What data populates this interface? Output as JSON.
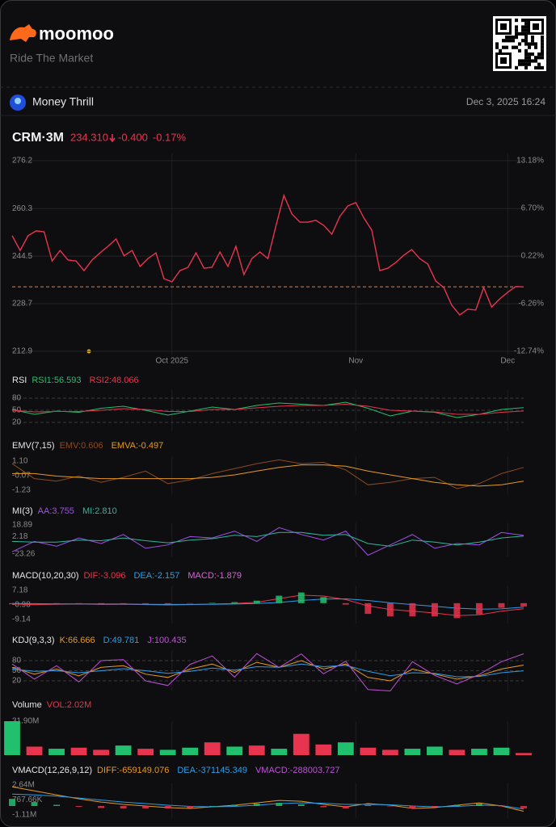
{
  "header": {
    "brand": "moomoo",
    "tagline": "Ride The Market"
  },
  "post": {
    "author": "Money Thrill",
    "date": "Dec 3, 2025 16:24"
  },
  "chart_data": [
    {
      "type": "line",
      "title": "CRM·3M",
      "price": "234.310",
      "change": "-0.400",
      "change_pct": "-0.17%",
      "price_line": 234.31,
      "xlim": [
        0,
        64
      ],
      "xticks": [
        {
          "value": 20,
          "label": "Oct 2025"
        },
        {
          "value": 43,
          "label": "Nov"
        },
        {
          "value": 62,
          "label": "Dec"
        }
      ],
      "ylim": [
        212.9,
        276.2
      ],
      "yticks": [
        276.2,
        260.3,
        244.5,
        228.7,
        212.9
      ],
      "y2lim": [
        -12.74,
        13.18
      ],
      "y2ticks": [
        {
          "value": 13.18,
          "label": "13.18%"
        },
        {
          "value": 6.7,
          "label": "6.70%"
        },
        {
          "value": 0.22,
          "label": "0.22%"
        },
        {
          "value": -6.26,
          "label": "-6.26%"
        },
        {
          "value": -12.74,
          "label": "-12.74%"
        }
      ],
      "series": [
        {
          "color": "#e8344e",
          "values": [
            251.3,
            246.4,
            251.3,
            252.9,
            252.6,
            242.9,
            246.4,
            243.2,
            242.9,
            239.7,
            243.2,
            245.6,
            247.8,
            250.2,
            244.6,
            246.4,
            241.1,
            243.7,
            245.6,
            237.0,
            236.0,
            239.7,
            240.8,
            245.6,
            240.5,
            240.8,
            245.9,
            241.1,
            247.8,
            238.4,
            243.7,
            245.9,
            243.7,
            254.5,
            264.7,
            258.5,
            255.8,
            255.8,
            256.4,
            254.7,
            251.8,
            257.7,
            261.2,
            262.3,
            257.2,
            253.1,
            239.7,
            240.5,
            242.4,
            244.8,
            246.7,
            243.7,
            241.9,
            236.2,
            234.1,
            228.2,
            225.0,
            226.9,
            226.6,
            234.1,
            227.6,
            230.3,
            232.5,
            234.4,
            234.3
          ]
        }
      ]
    },
    {
      "type": "line",
      "title": "RSI",
      "grid": true,
      "ylim": [
        0,
        100
      ],
      "yticks": [
        80,
        50,
        20
      ],
      "series": [
        {
          "name": "RSI1:56.593",
          "color": "#21c06e",
          "values": [
            52,
            40,
            48,
            45,
            55,
            60,
            50,
            38,
            48,
            58,
            52,
            62,
            68,
            65,
            62,
            70,
            55,
            36,
            48,
            45,
            32,
            40,
            52,
            56.6
          ]
        },
        {
          "name": "RSI2:48.066",
          "color": "#e8344e",
          "values": [
            50,
            46,
            47,
            47,
            50,
            54,
            52,
            47,
            47,
            52,
            52,
            56,
            60,
            62,
            62,
            65,
            60,
            50,
            48,
            46,
            40,
            40,
            45,
            48.1
          ]
        }
      ]
    },
    {
      "type": "line",
      "title": "EMV(7,15)",
      "ylim": [
        -1.6,
        1.5
      ],
      "yticks": [
        {
          "value": 1.1,
          "label": "1.10"
        },
        -0.07,
        -1.23
      ],
      "series": [
        {
          "name": "EMV:0.606",
          "color": "#8a4a22",
          "values": [
            0.9,
            -0.3,
            -0.5,
            -0.1,
            -0.6,
            -0.2,
            0.3,
            -0.7,
            -0.4,
            0.1,
            0.5,
            0.9,
            1.2,
            0.9,
            1.0,
            0.4,
            -0.8,
            -0.6,
            -0.3,
            -0.2,
            -1.1,
            -0.7,
            0.1,
            0.6
          ]
        },
        {
          "name": "EMVA:-0.497",
          "color": "#e59a1e",
          "values": [
            0.1,
            0.1,
            -0.1,
            -0.2,
            -0.3,
            -0.3,
            -0.3,
            -0.3,
            -0.3,
            -0.2,
            0.0,
            0.3,
            0.6,
            0.8,
            0.8,
            0.7,
            0.3,
            0.0,
            -0.3,
            -0.6,
            -0.8,
            -0.9,
            -0.8,
            -0.5
          ]
        }
      ]
    },
    {
      "type": "line",
      "title": "MI(3)",
      "ylim": [
        -27,
        22
      ],
      "yticks": [
        18.89,
        2.18,
        -23.26
      ],
      "series": [
        {
          "name": "AA:3.755",
          "color": "#a050e8",
          "values": [
            -20,
            -5,
            -12,
            0,
            -8,
            5,
            -15,
            -10,
            2,
            0,
            10,
            -5,
            15,
            5,
            -3,
            10,
            -25,
            -10,
            5,
            -15,
            -8,
            -10,
            8,
            3.8
          ]
        },
        {
          "name": "MI:2.810",
          "color": "#2bb89a",
          "values": [
            -5,
            -6,
            -6,
            -3,
            -4,
            0,
            -4,
            -7,
            -3,
            -1,
            4,
            2,
            8,
            8,
            4,
            5,
            -8,
            -12,
            -3,
            -6,
            -10,
            -6,
            0,
            2.8
          ]
        }
      ]
    },
    {
      "type": "line",
      "title": "MACD(10,20,30)",
      "ylim": [
        -11.4,
        9.9
      ],
      "yticks": [
        7.18,
        -0.98,
        -9.14
      ],
      "series": [
        {
          "name": "DIF:-3.096",
          "color": "#e8344e",
          "values": [
            -0.5,
            -0.8,
            -0.6,
            -0.5,
            -0.7,
            -0.6,
            -0.8,
            -1.0,
            -0.8,
            -0.5,
            -0.2,
            0.5,
            2.5,
            4.5,
            4.0,
            2.0,
            -1.5,
            -3.5,
            -4.5,
            -5.5,
            -7.0,
            -6.5,
            -4.5,
            -3.1
          ]
        },
        {
          "name": "DEA:-2.157",
          "color": "#2a9ee8",
          "values": [
            -0.2,
            -0.3,
            -0.4,
            -0.4,
            -0.5,
            -0.5,
            -0.6,
            -0.7,
            -0.7,
            -0.6,
            -0.5,
            -0.2,
            0.4,
            1.5,
            2.3,
            2.4,
            1.5,
            0.2,
            -0.8,
            -1.8,
            -2.8,
            -3.4,
            -3.2,
            -2.2
          ]
        },
        {
          "name": "MACD:-1.879",
          "color": "#d860d8",
          "type": "bar",
          "values": [
            -0.6,
            -1.0,
            -0.4,
            -0.2,
            -0.4,
            -0.2,
            -0.4,
            -0.6,
            -0.2,
            0.2,
            0.6,
            1.4,
            4.2,
            6.0,
            3.4,
            -0.8,
            -6.0,
            -7.4,
            -7.4,
            -7.4,
            -8.4,
            -6.2,
            -2.6,
            -1.8
          ]
        }
      ]
    },
    {
      "type": "line",
      "title": "KDJ(9,3,3)",
      "grid": true,
      "ylim": [
        -10,
        110
      ],
      "yticks": [
        80,
        50,
        20
      ],
      "series": [
        {
          "name": "K:66.666",
          "color": "#e59a1e",
          "values": [
            60,
            40,
            55,
            35,
            60,
            65,
            40,
            30,
            55,
            70,
            45,
            75,
            60,
            80,
            55,
            70,
            30,
            20,
            55,
            40,
            25,
            35,
            55,
            66.7
          ]
        },
        {
          "name": "D:49.781",
          "color": "#2a9ee8",
          "values": [
            55,
            48,
            50,
            44,
            50,
            56,
            50,
            42,
            48,
            58,
            52,
            62,
            60,
            70,
            62,
            66,
            48,
            35,
            44,
            42,
            32,
            33,
            44,
            49.8
          ]
        },
        {
          "name": "J:100.435",
          "color": "#c050d8",
          "values": [
            70,
            25,
            65,
            17,
            80,
            83,
            20,
            6,
            69,
            94,
            31,
            101,
            60,
            100,
            41,
            78,
            -6,
            -10,
            77,
            36,
            11,
            39,
            77,
            100.4
          ]
        }
      ]
    },
    {
      "type": "bar",
      "title": "Volume",
      "ylim": [
        0,
        31.9
      ],
      "yticks": [
        {
          "value": 31.9,
          "label": "31.90M"
        }
      ],
      "series": [
        {
          "name": "VOL:2.02M",
          "color": "#e8344e",
          "type": "bar",
          "values": [
            31.9,
            8,
            6,
            7,
            5,
            9,
            6,
            5,
            7,
            12,
            8,
            9,
            6,
            20,
            10,
            12,
            7,
            5,
            6,
            8,
            5,
            6,
            7,
            2.02
          ],
          "colors": [
            "#21c06e",
            "#e8344e",
            "#21c06e",
            "#e8344e",
            "#e8344e",
            "#21c06e",
            "#e8344e",
            "#21c06e",
            "#21c06e",
            "#e8344e",
            "#21c06e",
            "#e8344e",
            "#21c06e",
            "#e8344e",
            "#e8344e",
            "#21c06e",
            "#e8344e",
            "#e8344e",
            "#21c06e",
            "#21c06e",
            "#e8344e",
            "#21c06e",
            "#21c06e",
            "#e8344e"
          ]
        }
      ]
    },
    {
      "type": "line",
      "title": "VMACD(12,26,9,12)",
      "ylim": [
        -1500000,
        2900000
      ],
      "yticks": [
        {
          "value": 2640000,
          "label": "2.64M"
        },
        {
          "value": 767660,
          "label": "767.66K"
        },
        {
          "value": -1110000,
          "label": "-1.11M"
        }
      ],
      "series": [
        {
          "name": "DIFF:-659149.076",
          "color": "#e59a1e",
          "values": [
            2400000,
            1900000,
            1400000,
            900000,
            500000,
            200000,
            0,
            -200000,
            -300000,
            -100000,
            100000,
            400000,
            700000,
            600000,
            200000,
            -100000,
            300000,
            100000,
            -300000,
            -200000,
            100000,
            400000,
            0,
            -659149
          ]
        },
        {
          "name": "DEA:-371145.349",
          "color": "#2a9ee8",
          "values": [
            1500000,
            1400000,
            1250000,
            1000000,
            750000,
            500000,
            300000,
            100000,
            -50000,
            -100000,
            -50000,
            100000,
            300000,
            400000,
            350000,
            200000,
            200000,
            150000,
            0,
            -100000,
            -50000,
            100000,
            50000,
            -371145
          ]
        },
        {
          "name": "VMACD:-288003.727",
          "color": "#c050d8",
          "type": "bar",
          "values": [
            900000,
            500000,
            150000,
            -100000,
            -250000,
            -300000,
            -300000,
            -300000,
            -250000,
            0,
            150000,
            300000,
            400000,
            200000,
            -150000,
            -300000,
            100000,
            -50000,
            -300000,
            -100000,
            150000,
            300000,
            -50000,
            -288004
          ]
        }
      ]
    }
  ]
}
